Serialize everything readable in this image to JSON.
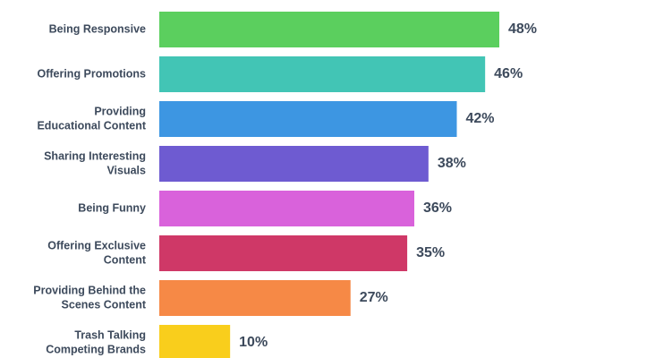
{
  "chart_data": {
    "type": "bar",
    "orientation": "horizontal",
    "title": "",
    "xlabel": "",
    "ylabel": "",
    "unit": "%",
    "xlim": [
      0,
      48
    ],
    "grid": false,
    "legend": "none",
    "categories": [
      [
        "Being Responsive"
      ],
      [
        "Offering Promotions"
      ],
      [
        "Providing",
        "Educational Content"
      ],
      [
        "Sharing Interesting",
        "Visuals"
      ],
      [
        "Being Funny"
      ],
      [
        "Offering Exclusive",
        "Content"
      ],
      [
        "Providing Behind the",
        "Scenes Content"
      ],
      [
        "Trash Talking",
        "Competing Brands"
      ]
    ],
    "values": [
      48,
      46,
      42,
      38,
      36,
      35,
      27,
      10
    ],
    "value_labels": [
      "48%",
      "46%",
      "42%",
      "38%",
      "36%",
      "35%",
      "27%",
      "10%"
    ],
    "colors": [
      "#5bcf5e",
      "#42c5b5",
      "#3d96e2",
      "#6e5bd1",
      "#d962db",
      "#cf3867",
      "#f68946",
      "#f9ce1c"
    ]
  }
}
